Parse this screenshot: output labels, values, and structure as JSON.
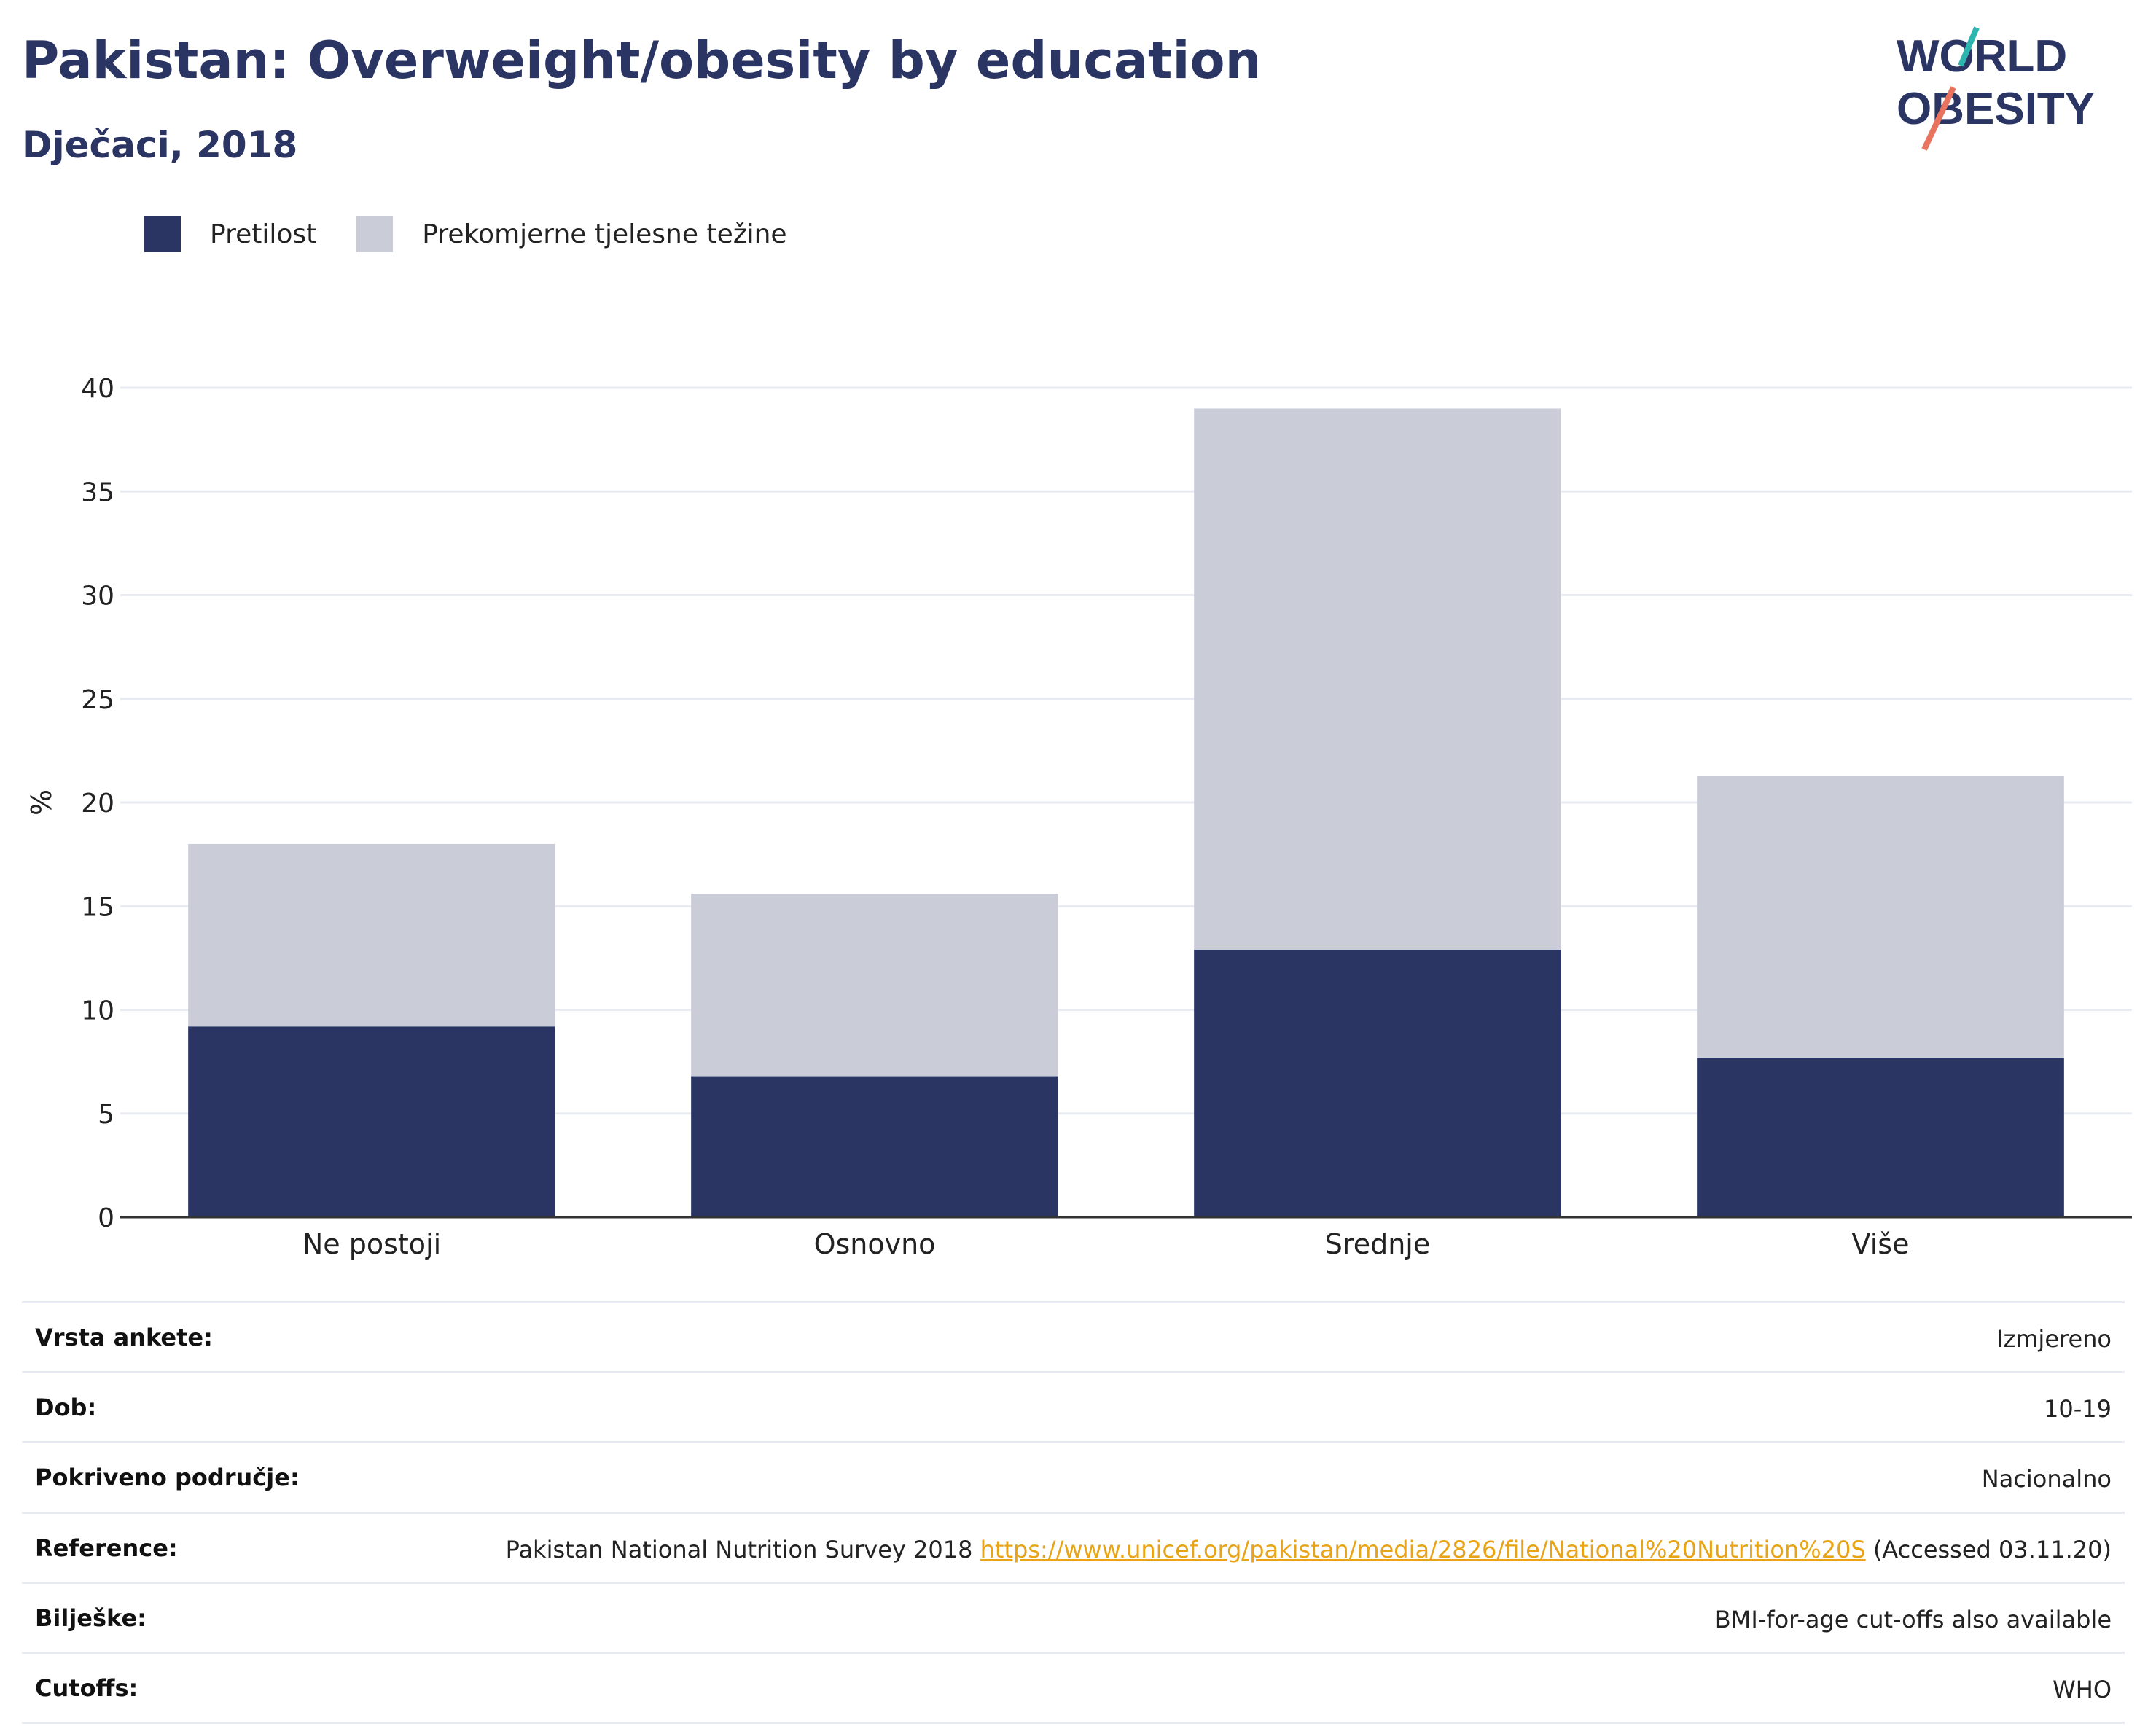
{
  "header": {
    "title": "Pakistan: Overweight/obesity by education",
    "subtitle": "Dječaci, 2018"
  },
  "logo": {
    "line1": "WORLD",
    "line2": "OBESITY"
  },
  "colors": {
    "obesity": "#2a3563",
    "overweight": "#cacdd8",
    "title": "#2a3563",
    "link": "#e8a317",
    "logo_teal": "#2fb5b0",
    "logo_coral": "#e8735e"
  },
  "chart_data": {
    "type": "bar",
    "stacked": true,
    "categories": [
      "Ne postoji",
      "Osnovno",
      "Srednje",
      "Više"
    ],
    "series": [
      {
        "name": "Pretilost",
        "values": [
          9.2,
          6.8,
          12.9,
          7.7
        ]
      },
      {
        "name": "Prekomjerne tjelesne težine",
        "values": [
          8.8,
          8.8,
          26.1,
          13.6
        ]
      }
    ],
    "totals": [
      18.0,
      15.6,
      39.0,
      21.3
    ],
    "ylabel": "%",
    "yticks": [
      "0",
      "5",
      "10",
      "15",
      "20",
      "25",
      "30",
      "35",
      "40"
    ],
    "ylim": [
      0,
      40
    ],
    "grid": true,
    "legend_position": "top-left"
  },
  "info": [
    {
      "label": "Vrsta ankete:",
      "value": "Izmjereno"
    },
    {
      "label": "Dob:",
      "value": "10-19"
    },
    {
      "label": "Pokriveno područje:",
      "value": "Nacionalno"
    },
    {
      "label": "Reference:",
      "value_pre": "Pakistan National Nutrition Survey 2018",
      "link": "https://www.unicef.org/pakistan/media/2826/file/National%20Nutrition%20S",
      "value_post": "(Accessed 03.11.20)"
    },
    {
      "label": "Bilješke:",
      "value": "BMI-for-age cut-offs also available"
    },
    {
      "label": "Cutoffs:",
      "value": "WHO"
    }
  ]
}
